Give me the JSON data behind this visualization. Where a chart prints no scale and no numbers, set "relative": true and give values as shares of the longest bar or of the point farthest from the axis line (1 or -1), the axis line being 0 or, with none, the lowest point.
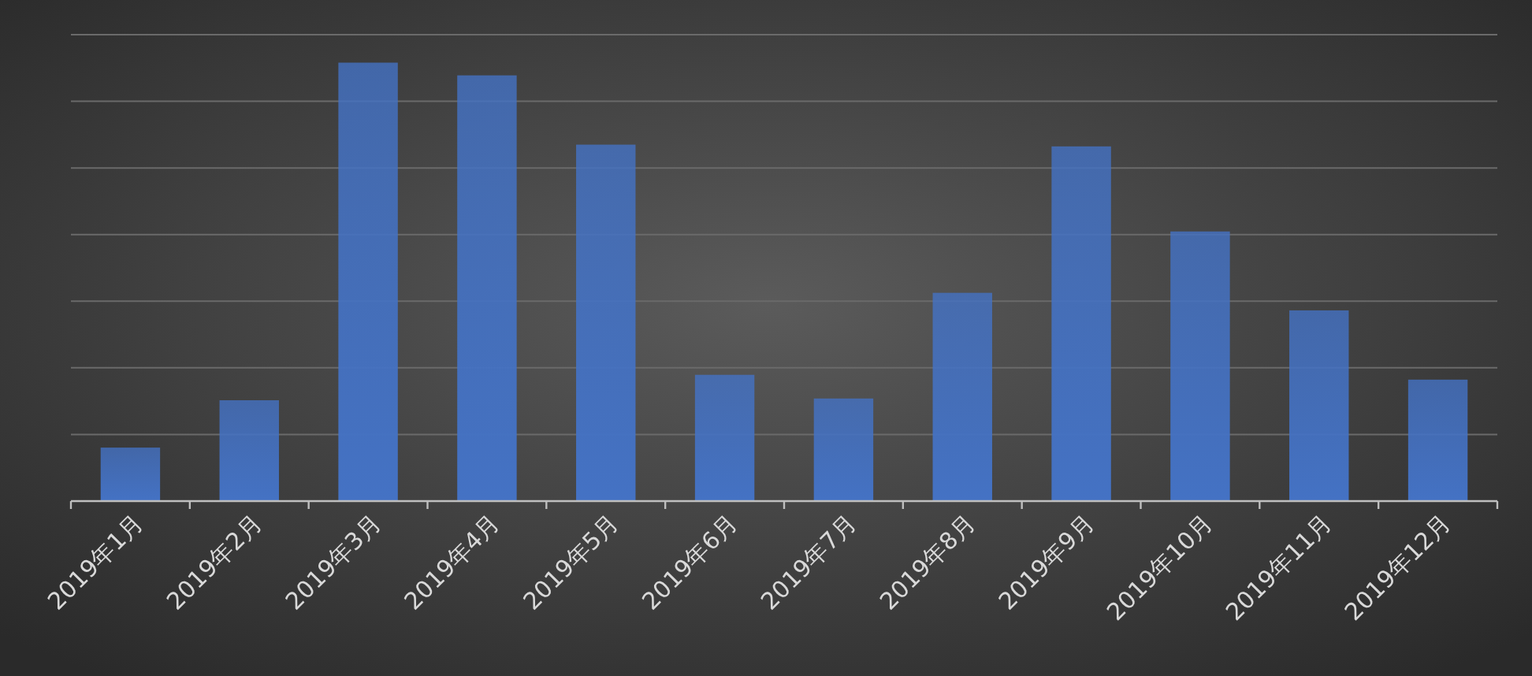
{
  "chart_data": {
    "type": "bar",
    "relative": true,
    "grid": "y",
    "color": "#4472c4",
    "categories": [
      "2019年1月",
      "2019年2月",
      "2019年3月",
      "2019年4月",
      "2019年5月",
      "2019年6月",
      "2019年7月",
      "2019年8月",
      "2019年9月",
      "2019年10月",
      "2019年11月",
      "2019年12月"
    ],
    "values": [
      0.122,
      0.23,
      1,
      0.971,
      0.813,
      0.288,
      0.234,
      0.475,
      0.809,
      0.615,
      0.435,
      0.277
    ]
  }
}
